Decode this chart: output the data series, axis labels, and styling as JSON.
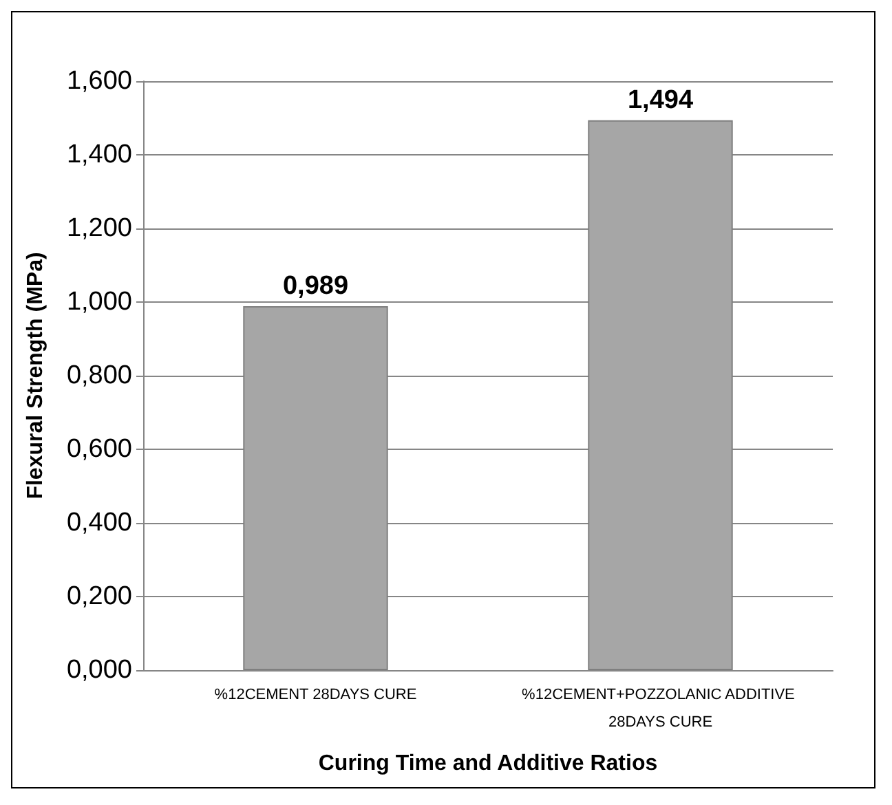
{
  "chart_data": {
    "type": "bar",
    "xlabel": "Curing Time and Additive Ratios",
    "ylabel": "Flexural Strength (MPa)",
    "categories": [
      "%12CEMENT 28DAYS CURE",
      "%12CEMENT+POZZOLANIC ADDITIVE 28DAYS CURE"
    ],
    "series": [
      {
        "color": "#a6a6a6",
        "values": [
          0.989,
          1.494
        ],
        "value_labels": [
          "0,989",
          "1,494"
        ]
      }
    ],
    "ylim": [
      0,
      1.6
    ],
    "yticks": [
      {
        "value": 0,
        "label": "0,000"
      },
      {
        "value": 0.2,
        "label": "0,200"
      },
      {
        "value": 0.4,
        "label": "0,400"
      },
      {
        "value": 0.6,
        "label": "0,600"
      },
      {
        "value": 0.8,
        "label": "0,800"
      },
      {
        "value": 1,
        "label": "1,000"
      },
      {
        "value": 1.2,
        "label": "1,200"
      },
      {
        "value": 1.4,
        "label": "1,400"
      },
      {
        "value": 1.6,
        "label": "1,600"
      }
    ],
    "grid": true
  }
}
